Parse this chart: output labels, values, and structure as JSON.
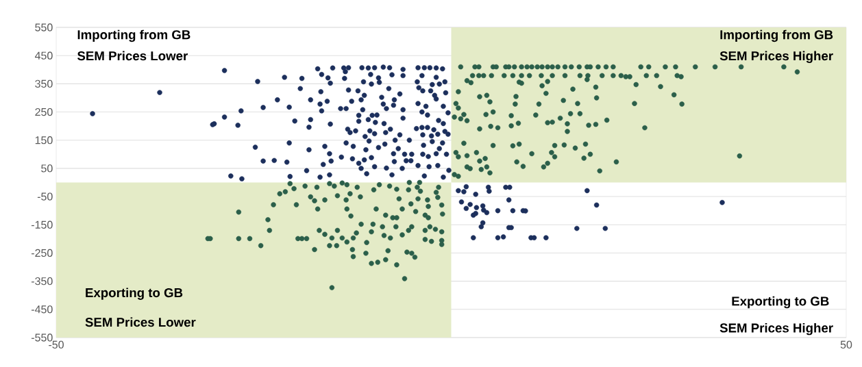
{
  "chart_data": {
    "type": "scatter",
    "xlim": [
      -50,
      50
    ],
    "ylim": [
      -550,
      550
    ],
    "xticks": [
      -50,
      50
    ],
    "yticks": [
      -550,
      -450,
      -350,
      -250,
      -150,
      -50,
      50,
      150,
      250,
      350,
      450,
      550
    ],
    "grid": "y",
    "annotations": [
      "Importing from GB",
      "SEM Prices Lower",
      "Importing from GB",
      "SEM Prices Higher",
      "Exporting to GB",
      "SEM Prices Lower",
      "Exporting to GB",
      "SEM Prices Higher"
    ],
    "series": [
      {
        "type": "area",
        "color": "#e4ebc7",
        "x": [
          -50,
          0
        ],
        "values": [
          -550,
          -550
        ]
      },
      {
        "type": "area",
        "color": "#e4ebc7",
        "x": [
          0,
          50
        ],
        "values": [
          550,
          550
        ]
      },
      {
        "color": "#1c2f5c",
        "x": [
          -45.4,
          -36.9,
          -28.7,
          -24.5,
          -26.6,
          -28.7,
          -30.0,
          -30.2,
          -27.0,
          -24.8,
          -27.9,
          -26.5,
          -23.8,
          -21.1,
          -18.9,
          -19.1,
          -22.0,
          -20.5,
          -19.8,
          -17.8,
          -18.0,
          -17.8,
          -20.5,
          -23.8,
          -22.4,
          -20.8,
          -18.3,
          -20.4,
          -18.0,
          -16.0,
          -15.4,
          -16.2,
          -15.2,
          -16.6,
          -15.4,
          -16.9,
          -15.0,
          -13.6,
          -13.0,
          -13.4,
          -16.4,
          -15.6,
          -15.3,
          -13.5,
          -16.5,
          -16.6,
          -15.7,
          -16.4,
          -15.3,
          -14.0,
          -13.3,
          -13.0,
          -11.8,
          -12.6,
          -11.4,
          -11.0,
          -11.3,
          -10.5,
          -9.7,
          -8.6,
          -7.8,
          -10.2,
          -9.2,
          -11.1,
          -10.1,
          -9.1,
          -7.5,
          -6.1,
          -6.1,
          -7.9,
          -6.5,
          -7.2,
          -8.8,
          -8.6,
          -8.2,
          -7.3,
          -6.1,
          -6.1,
          -11.2,
          -11.7,
          -11.7,
          -10.5,
          -10.0,
          -9.4,
          -9.6,
          -8.5,
          -13.1,
          -12.8,
          -12.1,
          -10.9,
          -10.3,
          -9.7,
          -8.3,
          -7.7,
          -6.5,
          -5.3,
          -13.3,
          -12.4,
          -10.8,
          -10.4,
          -9.2,
          -8.4,
          -7.1,
          -6.7,
          -7.3,
          -13.9,
          -12.5,
          -11.7,
          -11.0,
          -10.1,
          -11.4,
          -9.7,
          -10.7,
          -8.2,
          -7.2,
          -6.2,
          -7.5,
          -5.9,
          -5.0,
          -5.7,
          -5.1,
          -4.2,
          -3.4,
          -2.7,
          -1.9,
          -1.1,
          -3.7,
          -1.9,
          -0.8,
          -4.3,
          -2.4,
          -1.5,
          -4.1,
          -3.6,
          -2.6,
          -0.7,
          -2.1,
          -1.9,
          -4.2,
          -3.2,
          -1.0,
          -3.7,
          -3.0,
          -0.4,
          -1.6,
          -1.0,
          -4.4,
          -3.7,
          -3.0,
          -2.2,
          -0.8,
          -3.6,
          -2.5,
          -1.7,
          -0.4,
          -3.5,
          -2.4,
          -1.1,
          -1.5,
          -3.6,
          -2.9,
          -1.9,
          -0.6,
          -4.2,
          -2.8,
          -1.7,
          -0.3,
          -3.4,
          -1.0,
          0.9,
          1.6,
          1.9,
          3.1,
          4.7,
          4.8,
          6.9,
          7.4,
          1.3,
          1.9,
          2.4,
          3.2,
          4.0,
          4.1,
          4.5,
          2.8,
          3.1,
          5.9,
          7.3,
          7.8,
          9.1,
          9.4,
          4.0,
          3.8,
          7.3,
          7.6,
          2.8,
          5.9,
          6.6,
          10.1,
          10.5,
          12.0,
          15.9,
          19.5,
          17.2,
          18.4,
          34.3
        ],
        "values": [
          244,
          319,
          397,
          358,
          254,
          232,
          208,
          205,
          203,
          125,
          23,
          13,
          266,
          373,
          369,
          333,
          293,
          267,
          218,
          293,
          196,
          223,
          140,
          76,
          78,
          72,
          42,
          21,
          116,
          128,
          102,
          64,
          76,
          19,
          27,
          403,
          406,
          406,
          407,
          393,
          383,
          371,
          352,
          369,
          322,
          278,
          288,
          254,
          207,
          262,
          262,
          328,
          325,
          288,
          293,
          309,
          407,
          406,
          407,
          409,
          407,
          383,
          371,
          357,
          349,
          355,
          382,
          401,
          379,
          333,
          314,
          293,
          302,
          278,
          262,
          274,
          258,
          228,
          258,
          238,
          217,
          223,
          238,
          239,
          213,
          209,
          189,
          177,
          183,
          163,
          183,
          173,
          177,
          189,
          169,
          150,
          140,
          128,
          116,
          147,
          124,
          136,
          150,
          120,
          102,
          90,
          84,
          68,
          80,
          88,
          50,
          56,
          31,
          51,
          74,
          50,
          27,
          100,
          100,
          77,
          77,
          407,
          407,
          407,
          406,
          403,
          379,
          373,
          357,
          357,
          347,
          349,
          336,
          325,
          325,
          318,
          309,
          296,
          280,
          270,
          270,
          250,
          239,
          247,
          220,
          209,
          191,
          195,
          195,
          187,
          181,
          169,
          165,
          171,
          171,
          132,
          145,
          140,
          120,
          100,
          92,
          102,
          100,
          60,
          56,
          60,
          43,
          23,
          19,
          -29,
          -33,
          -15,
          -42,
          -17,
          -31,
          -17,
          -17,
          -69,
          -92,
          -78,
          -89,
          -83,
          -98,
          -107,
          -116,
          -110,
          -100,
          -62,
          -100,
          -100,
          -101,
          -143,
          -157,
          -160,
          -160,
          -196,
          -196,
          -193,
          -196,
          -196,
          -196,
          -163,
          -163,
          -29,
          -80,
          -71
        ]
      },
      {
        "color": "#2b5f4a",
        "x": [
          1.2,
          3.0,
          3.5,
          5.3,
          5.7,
          6.9,
          7.3,
          8.0,
          8.9,
          9.6,
          10.2,
          10.9,
          11.5,
          12.2,
          12.8,
          13.5,
          14.4,
          15.2,
          16.2,
          17.2,
          17.6,
          18.6,
          19.6,
          20.5,
          24.0,
          25.0,
          27.1,
          28.4,
          30.9,
          33.4,
          36.7,
          42.1,
          43.8,
          2.7,
          3.5,
          4.1,
          5.1,
          6.7,
          7.8,
          8.9,
          9.9,
          11.4,
          12.8,
          14.4,
          16.3,
          17.3,
          19.1,
          20.5,
          21.5,
          22.1,
          22.6,
          24.7,
          26.0,
          28.6,
          29.1,
          2.0,
          2.5,
          8.6,
          8.9,
          11.5,
          12.2,
          17.2,
          18.3,
          23.4,
          26.5,
          0.9,
          12.0,
          15.4,
          3.6,
          4.5,
          4.9,
          8.2,
          18.4,
          28.2,
          0.6,
          0.9,
          8.1,
          11.1,
          14.2,
          16.0,
          23.2,
          29.2,
          1.6,
          0.4,
          1.2,
          2.0,
          4.4,
          5.3,
          7.6,
          10.7,
          15.1,
          16.3,
          3.6,
          5.0,
          5.9,
          7.6,
          8.5,
          12.2,
          12.8,
          13.8,
          14.7,
          14.7,
          17.4,
          18.3,
          19.7,
          24.5,
          1.6,
          5.3,
          7.8,
          8.6,
          13.1,
          14.3,
          15.7,
          17.0,
          0.6,
          0.9,
          2.0,
          3.2,
          10.2,
          12.7,
          13.1,
          17.6,
          16.8,
          3.6,
          4.3,
          8.3,
          9.1,
          11.7,
          12.2,
          2.0,
          2.4,
          4.5,
          20.9,
          18.8,
          0.4,
          0.9,
          3.8,
          4.9,
          36.5,
          -30.8,
          -30.5,
          -26.9,
          -25.5,
          -24.1,
          -26.9,
          -23.2,
          -23.0,
          -22.5,
          -21.7,
          -21.0,
          -19.6,
          -19.4,
          -18.9,
          -18.3,
          -20.4,
          -19.9,
          -18.5,
          -17.0,
          -17.8,
          -17.3,
          -16.9,
          -17.3,
          -16.7,
          -16.0,
          -15.4,
          -14.8,
          -16.0,
          -14.4,
          -15.4,
          -14.5,
          -15.1,
          -14.4,
          -13.8,
          -13.2,
          -13.3,
          -12.8,
          -13.2,
          -12.7,
          -13.8,
          -13.2,
          -12.4,
          -12.0,
          -11.9,
          -11.5,
          -12.5,
          -12.4,
          -11.4,
          -10.8,
          -10.7,
          -10.1,
          -9.3,
          -10.1,
          -9.9,
          -9.8,
          -9.1,
          -9.5,
          -8.7,
          -8.5,
          -8.3,
          -7.8,
          -8.0,
          -8.3,
          -7.7,
          -7.4,
          -6.9,
          -6.9,
          -6.6,
          -7.0,
          -6.9,
          -6.2,
          -6.2,
          -5.9,
          -5.4,
          -5.3,
          -5.6,
          -5.0,
          -5.1,
          -4.5,
          -5.4,
          -5.0,
          -4.6,
          -4.3,
          -4.0,
          -4.2,
          -3.9,
          -3.3,
          -2.9,
          -3.3,
          -2.7,
          -3.3,
          -2.5,
          -3.0,
          -2.9,
          -1.9,
          -1.6,
          -2.0,
          -1.7,
          -1.2,
          -1.1,
          -1.2,
          -1.2,
          -1.2,
          -15.1
        ],
        "values": [
          410,
          410,
          410,
          410,
          410,
          410,
          410,
          410,
          410,
          410,
          410,
          410,
          410,
          410,
          410,
          410,
          410,
          410,
          410,
          410,
          410,
          410,
          410,
          410,
          410,
          410,
          410,
          410,
          410,
          410,
          410,
          410,
          392,
          379,
          379,
          379,
          379,
          379,
          379,
          379,
          379,
          379,
          379,
          379,
          379,
          379,
          379,
          379,
          379,
          375,
          375,
          379,
          379,
          379,
          375,
          361,
          354,
          356,
          352,
          343,
          358,
          365,
          338,
          347,
          340,
          322,
          316,
          331,
          304,
          309,
          286,
          305,
          300,
          311,
          280,
          264,
          278,
          278,
          291,
          280,
          280,
          278,
          241,
          232,
          226,
          219,
          241,
          250,
          237,
          239,
          244,
          244,
          190,
          199,
          194,
          201,
          210,
          212,
          214,
          228,
          208,
          181,
          203,
          206,
          221,
          194,
          139,
          131,
          130,
          136,
          131,
          133,
          122,
          136,
          106,
          91,
          95,
          106,
          102,
          106,
          91,
          100,
          86,
          76,
          85,
          73,
          57,
          55,
          68,
          55,
          49,
          55,
          73,
          41,
          28,
          22,
          46,
          34,
          94,
          -199,
          -199,
          -199,
          -199,
          -224,
          -105,
          -132,
          -170,
          -79,
          -40,
          -33,
          -79,
          -199,
          -199,
          -199,
          -4,
          -22,
          -13,
          -17,
          -51,
          -65,
          -94,
          -238,
          -170,
          -184,
          -4,
          -13,
          -62,
          -47,
          -224,
          -224,
          -197,
          -170,
          -2,
          -8,
          -62,
          -40,
          -94,
          -119,
          -197,
          -211,
          -197,
          -179,
          -17,
          -51,
          -238,
          -263,
          -148,
          -251,
          -213,
          -287,
          -283,
          -175,
          -148,
          -26,
          -8,
          -94,
          -157,
          -188,
          -116,
          -13,
          -242,
          -274,
          -197,
          -125,
          -125,
          -24,
          -58,
          -157,
          -292,
          -94,
          -186,
          -341,
          -26,
          0,
          -247,
          -251,
          -76,
          -103,
          -170,
          -157,
          -265,
          -17,
          0,
          -58,
          -31,
          -116,
          -125,
          -170,
          -157,
          -202,
          -209,
          -62,
          -85,
          -35,
          -17,
          -166,
          -53,
          -80,
          -112,
          -175,
          -206,
          -220,
          -373
        ]
      }
    ]
  }
}
